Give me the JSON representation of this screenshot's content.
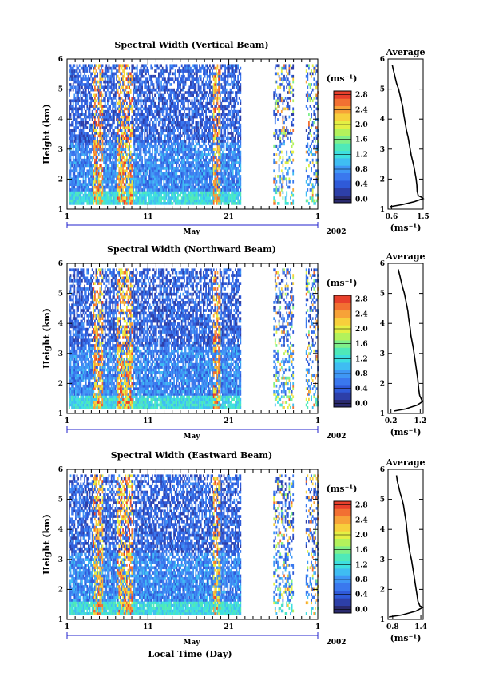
{
  "figure": {
    "xlabel": "Local Time (Day)",
    "month_label": "May",
    "year_label": "2002",
    "colorbar_unit": "(ms⁻¹)",
    "avg_unit": "(ms⁻¹)",
    "colors": {
      "colormap": [
        "#2a2a6e",
        "#2d3fa8",
        "#2f5ad8",
        "#3a78ee",
        "#3f97f5",
        "#3fbdf2",
        "#3edfe0",
        "#4fe9b8",
        "#7ff08a",
        "#b3f25c",
        "#e4f044",
        "#f7cf3c",
        "#f7a238",
        "#f27032",
        "#e8402c"
      ],
      "line": "#000000",
      "axis_bar": "#2222cc"
    }
  },
  "chart_data": [
    {
      "type": "heatmap",
      "title": "Spectral Width (Vertical Beam)",
      "ylabel": "Height (km)",
      "x_ticks": [
        "1",
        "11",
        "21",
        "1"
      ],
      "x_range_days": [
        1,
        32
      ],
      "ylim": [
        1,
        6
      ],
      "y_ticks": [
        "1",
        "2",
        "3",
        "4",
        "5",
        "6"
      ],
      "colorbar_ticks": [
        "0.0",
        "0.4",
        "0.8",
        "1.2",
        "1.6",
        "2.0",
        "2.4",
        "2.8"
      ],
      "colorbar_range": [
        0,
        3.0
      ],
      "data_segments_days": [
        [
          1.2,
          22.5
        ],
        [
          26.5,
          29.0
        ],
        [
          30.5,
          32.0
        ]
      ],
      "average_profile": {
        "title": "Average",
        "x_ticks": [
          "0.6",
          "1.5"
        ],
        "xlim": [
          0.5,
          1.5
        ],
        "ylim": [
          1,
          6
        ],
        "y_ticks": [
          "1",
          "2",
          "3",
          "4",
          "5",
          "6"
        ],
        "points": [
          [
            0.62,
            5.8
          ],
          [
            0.66,
            5.6
          ],
          [
            0.7,
            5.4
          ],
          [
            0.74,
            5.2
          ],
          [
            0.8,
            5.0
          ],
          [
            0.84,
            4.8
          ],
          [
            0.88,
            4.6
          ],
          [
            0.92,
            4.4
          ],
          [
            0.94,
            4.2
          ],
          [
            0.97,
            4.0
          ],
          [
            1.0,
            3.8
          ],
          [
            1.03,
            3.6
          ],
          [
            1.07,
            3.4
          ],
          [
            1.1,
            3.2
          ],
          [
            1.13,
            3.0
          ],
          [
            1.16,
            2.8
          ],
          [
            1.2,
            2.6
          ],
          [
            1.24,
            2.4
          ],
          [
            1.27,
            2.2
          ],
          [
            1.3,
            2.0
          ],
          [
            1.32,
            1.8
          ],
          [
            1.33,
            1.6
          ],
          [
            1.36,
            1.45
          ],
          [
            1.45,
            1.4
          ],
          [
            1.5,
            1.35
          ],
          [
            1.25,
            1.25
          ],
          [
            0.9,
            1.15
          ],
          [
            0.55,
            1.08
          ]
        ]
      }
    },
    {
      "type": "heatmap",
      "title": "Spectral Width (Northward Beam)",
      "ylabel": "Height (km)",
      "x_ticks": [
        "1",
        "11",
        "21",
        "1"
      ],
      "x_range_days": [
        1,
        32
      ],
      "ylim": [
        1,
        6
      ],
      "y_ticks": [
        "1",
        "2",
        "3",
        "4",
        "5",
        "6"
      ],
      "colorbar_ticks": [
        "0.0",
        "0.4",
        "0.8",
        "1.2",
        "1.6",
        "2.0",
        "2.4",
        "2.8"
      ],
      "colorbar_range": [
        0,
        3.0
      ],
      "data_segments_days": [
        [
          1.2,
          22.5
        ],
        [
          26.5,
          29.0
        ],
        [
          30.5,
          32.0
        ]
      ],
      "average_profile": {
        "title": "Average",
        "x_ticks": [
          "0.2",
          "1.2"
        ],
        "xlim": [
          0.1,
          1.3
        ],
        "ylim": [
          1,
          6
        ],
        "y_ticks": [
          "1",
          "2",
          "3",
          "4",
          "5",
          "6"
        ],
        "points": [
          [
            0.45,
            5.8
          ],
          [
            0.5,
            5.6
          ],
          [
            0.55,
            5.4
          ],
          [
            0.6,
            5.2
          ],
          [
            0.66,
            5.0
          ],
          [
            0.7,
            4.8
          ],
          [
            0.74,
            4.6
          ],
          [
            0.78,
            4.4
          ],
          [
            0.8,
            4.2
          ],
          [
            0.83,
            4.0
          ],
          [
            0.86,
            3.8
          ],
          [
            0.88,
            3.6
          ],
          [
            0.92,
            3.4
          ],
          [
            0.96,
            3.2
          ],
          [
            0.99,
            3.0
          ],
          [
            1.02,
            2.8
          ],
          [
            1.05,
            2.6
          ],
          [
            1.08,
            2.4
          ],
          [
            1.11,
            2.2
          ],
          [
            1.13,
            2.0
          ],
          [
            1.15,
            1.8
          ],
          [
            1.18,
            1.6
          ],
          [
            1.25,
            1.45
          ],
          [
            1.28,
            1.4
          ],
          [
            1.1,
            1.28
          ],
          [
            0.7,
            1.15
          ],
          [
            0.3,
            1.08
          ]
        ]
      }
    },
    {
      "type": "heatmap",
      "title": "Spectral Width (Eastward Beam)",
      "ylabel": "Height (km)",
      "x_ticks": [
        "1",
        "11",
        "21",
        "1"
      ],
      "x_range_days": [
        1,
        32
      ],
      "ylim": [
        1,
        6
      ],
      "y_ticks": [
        "1",
        "2",
        "3",
        "4",
        "5",
        "6"
      ],
      "colorbar_ticks": [
        "0.0",
        "0.4",
        "0.8",
        "1.2",
        "1.6",
        "2.0",
        "2.4",
        "2.8"
      ],
      "colorbar_range": [
        0,
        3.0
      ],
      "data_segments_days": [
        [
          1.2,
          22.5
        ],
        [
          26.5,
          29.0
        ],
        [
          30.5,
          32.0
        ]
      ],
      "average_profile": {
        "title": "Average",
        "x_ticks": [
          "0.8",
          "1.4"
        ],
        "xlim": [
          0.7,
          1.45
        ],
        "ylim": [
          1,
          6
        ],
        "y_ticks": [
          "1",
          "2",
          "3",
          "4",
          "5",
          "6"
        ],
        "points": [
          [
            0.88,
            5.8
          ],
          [
            0.9,
            5.6
          ],
          [
            0.93,
            5.4
          ],
          [
            0.96,
            5.2
          ],
          [
            1.0,
            5.0
          ],
          [
            1.03,
            4.8
          ],
          [
            1.05,
            4.6
          ],
          [
            1.07,
            4.4
          ],
          [
            1.09,
            4.2
          ],
          [
            1.1,
            4.0
          ],
          [
            1.12,
            3.8
          ],
          [
            1.13,
            3.6
          ],
          [
            1.15,
            3.4
          ],
          [
            1.17,
            3.2
          ],
          [
            1.2,
            3.0
          ],
          [
            1.22,
            2.8
          ],
          [
            1.24,
            2.6
          ],
          [
            1.26,
            2.4
          ],
          [
            1.28,
            2.2
          ],
          [
            1.3,
            2.0
          ],
          [
            1.32,
            1.8
          ],
          [
            1.34,
            1.6
          ],
          [
            1.38,
            1.45
          ],
          [
            1.44,
            1.4
          ],
          [
            1.3,
            1.28
          ],
          [
            1.0,
            1.15
          ],
          [
            0.72,
            1.08
          ]
        ]
      }
    }
  ]
}
